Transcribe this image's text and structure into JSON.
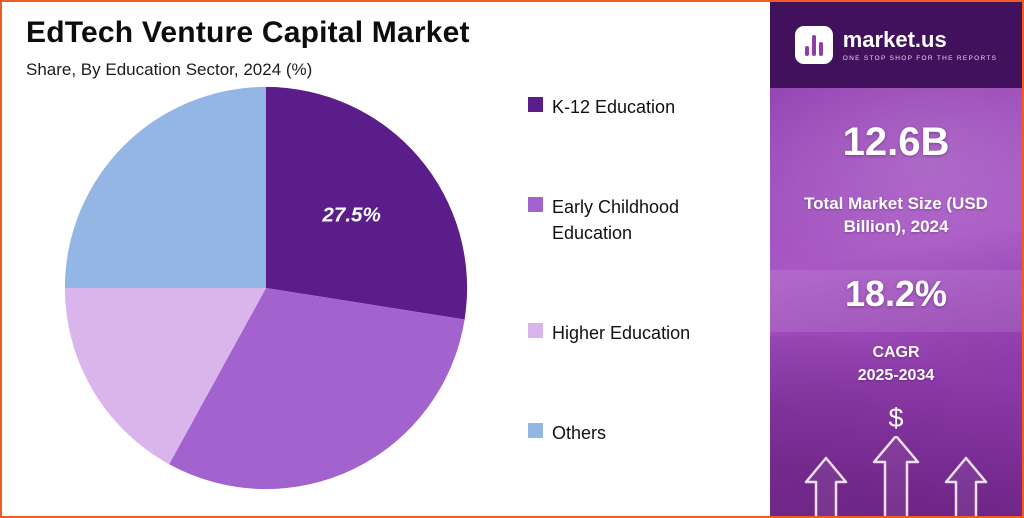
{
  "header": {
    "title": "EdTech Venture Capital Market",
    "subtitle": "Share, By Education Sector, 2024 (%)"
  },
  "chart_data": {
    "type": "pie",
    "title": "EdTech Venture Capital Market",
    "subtitle": "Share, By Education Sector, 2024 (%)",
    "unit": "%",
    "start_angle": "top",
    "direction": "clockwise",
    "legend_position": "right",
    "slices": [
      {
        "label": "K-12 Education",
        "value": 27.5,
        "color": "#5a1d89",
        "data_label": "27.5%"
      },
      {
        "label": "Early Childhood Education",
        "value": 30.5,
        "color": "#a263cf",
        "data_label": ""
      },
      {
        "label": "Higher Education",
        "value": 17.0,
        "color": "#d9b5ec",
        "data_label": ""
      },
      {
        "label": "Others",
        "value": 25.0,
        "color": "#93b6e4",
        "data_label": ""
      }
    ],
    "data_label_color": "#ffffff"
  },
  "sidebar": {
    "logo": {
      "name": "market.us",
      "tagline": "ONE STOP SHOP FOR THE REPORTS"
    },
    "market_size": {
      "value": "12.6B",
      "label": "Total Market Size (USD Billion), 2024"
    },
    "cagr": {
      "value": "18.2%",
      "label_line1": "CAGR",
      "label_line2": "2025-2034"
    },
    "dollar_symbol": "$"
  }
}
